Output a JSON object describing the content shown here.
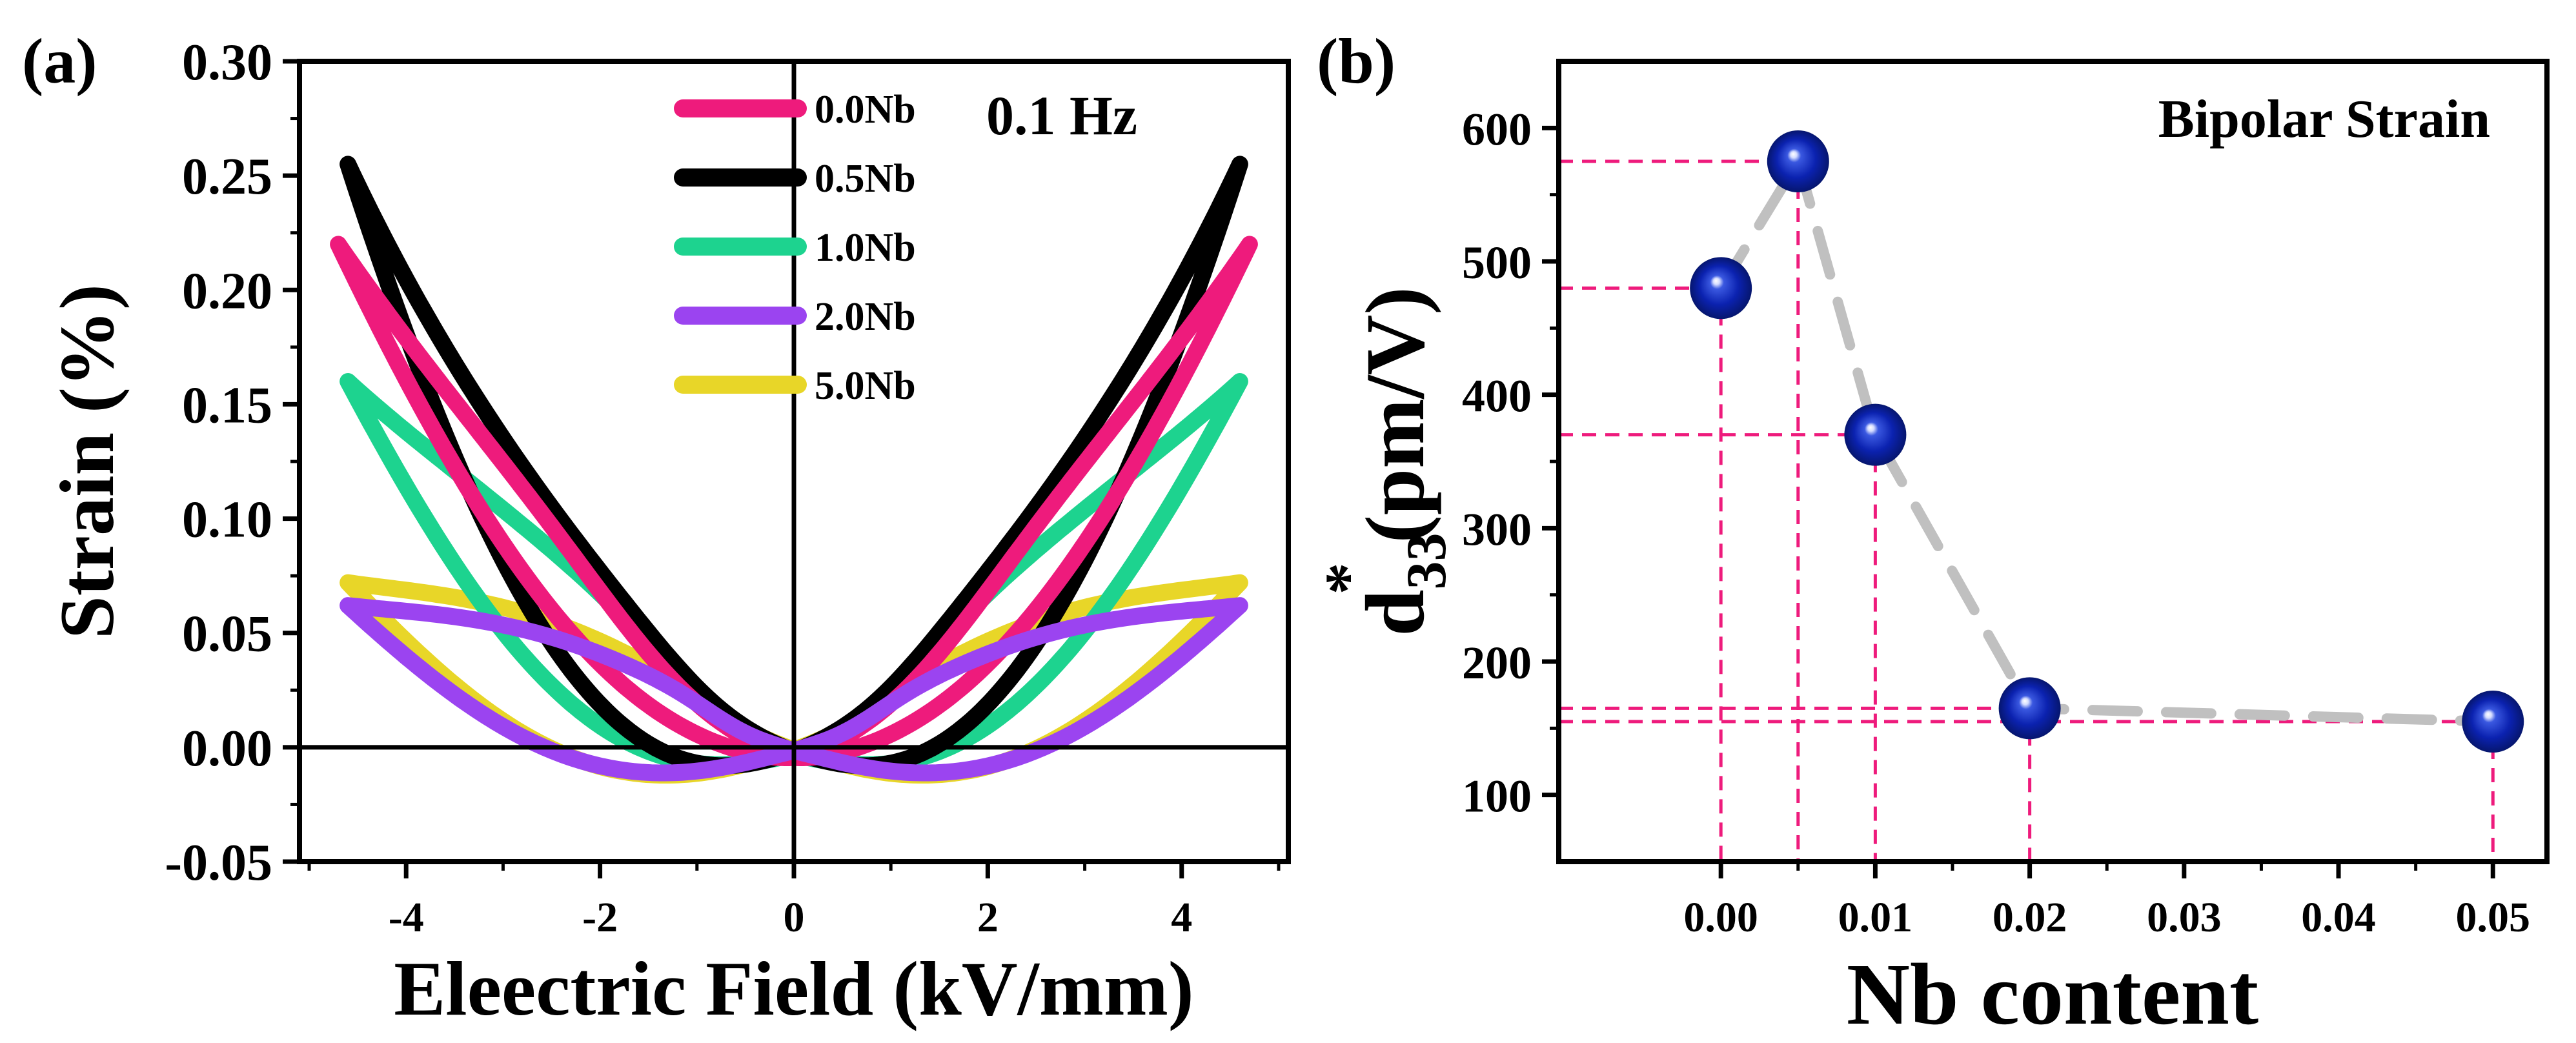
{
  "chart_data": [
    {
      "type": "line",
      "panel_label": "(a)",
      "xlabel": "Eleectric Field (kV/mm)",
      "ylabel": "Strain (%)",
      "xlim": [
        -5.1,
        5.1
      ],
      "ylim": [
        -0.05,
        0.3
      ],
      "xticks": [
        "-4",
        "-2",
        "0",
        "2",
        "4"
      ],
      "yticks": [
        "-0.05",
        "0.00",
        "0.05",
        "0.10",
        "0.15",
        "0.20",
        "0.25",
        "0.30"
      ],
      "annotation": "0.1 Hz",
      "legend_position": "top-center",
      "series": [
        {
          "name": "0.0Nb",
          "color": "#ee1b7c",
          "Emax": 4.7,
          "Smax": 0.22,
          "Sneg": -0.012,
          "Ec": 1.3,
          "p": 1.6,
          "width": 0.02
        },
        {
          "name": "0.5Nb",
          "color": "#000000",
          "Emax": 4.6,
          "Smax": 0.255,
          "Sneg": -0.005,
          "Ec": 0.9,
          "p": 2.0,
          "width": 0.03
        },
        {
          "name": "1.0Nb",
          "color": "#1dd38f",
          "Emax": 4.6,
          "Smax": 0.16,
          "Sneg": -0.008,
          "Ec": 0.9,
          "p": 1.7,
          "width": 0.03
        },
        {
          "name": "2.0Nb",
          "color": "#9b44f0",
          "Emax": 4.6,
          "Smax": 0.062,
          "Sneg": -0.004,
          "Ec": 0.6,
          "p": 1.6,
          "width": 0.025
        },
        {
          "name": "5.0Nb",
          "color": "#e8d628",
          "Emax": 4.6,
          "Smax": 0.072,
          "Sneg": -0.003,
          "Ec": 0.5,
          "p": 1.6,
          "width": 0.028
        }
      ]
    },
    {
      "type": "scatter",
      "panel_label": "(b)",
      "title": "Bipolar Strain",
      "xlabel": "Nb content",
      "ylabel_main": "d",
      "ylabel_sub": "33",
      "ylabel_sup": "*",
      "ylabel_unit": "(pm/V)",
      "xlim": [
        -0.0105,
        0.0535
      ],
      "ylim": [
        50,
        650
      ],
      "xticks": [
        "0.00",
        "0.01",
        "0.02",
        "0.03",
        "0.04",
        "0.05"
      ],
      "yticks": [
        "100",
        "200",
        "300",
        "400",
        "500",
        "600"
      ],
      "x": [
        0.0,
        0.005,
        0.01,
        0.02,
        0.05
      ],
      "y": [
        480,
        575,
        370,
        165,
        155
      ],
      "marker_color": "#0a22a8",
      "guide_color": "#ee1b7c",
      "trend_color": "#c0c0c0"
    }
  ]
}
